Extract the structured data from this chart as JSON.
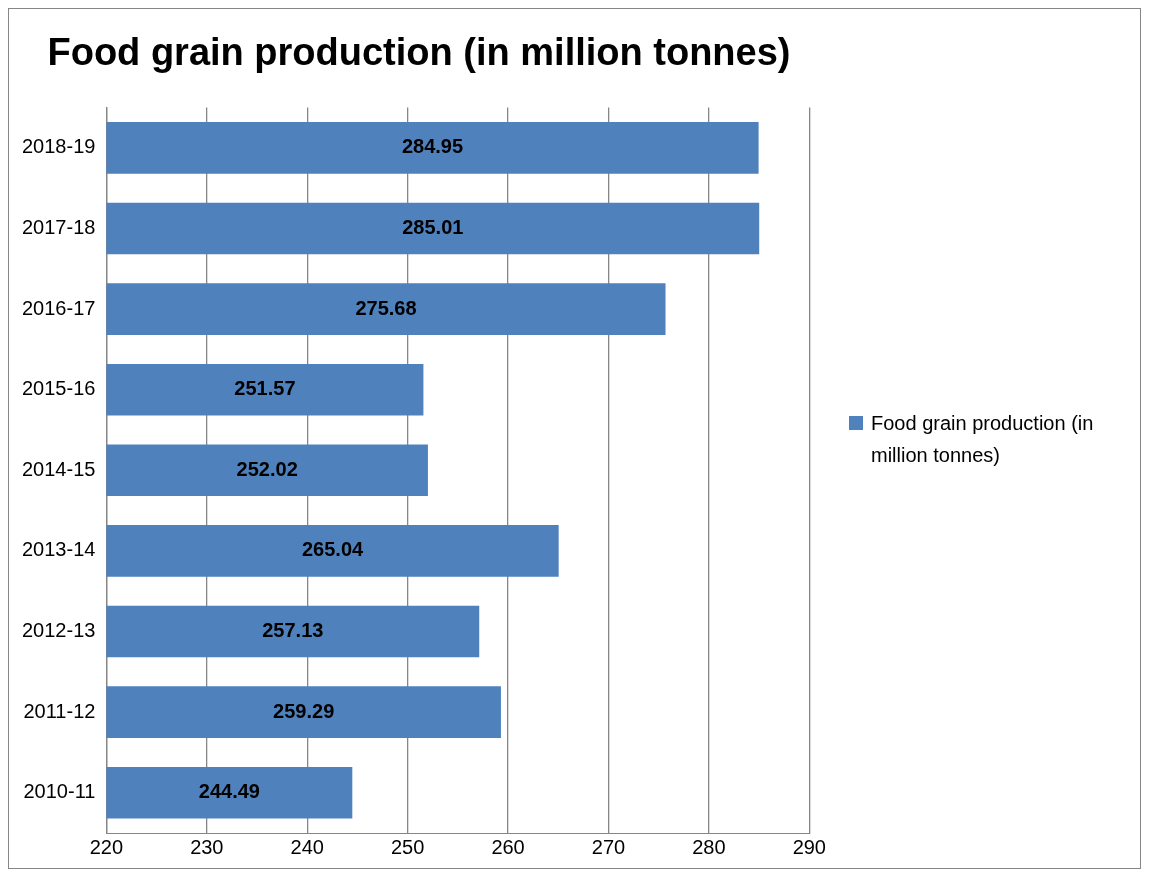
{
  "chart_data": {
    "type": "bar",
    "orientation": "horizontal",
    "title": "Food grain production (in million tonnes)",
    "categories": [
      "2018-19",
      "2017-18",
      "2016-17",
      "2015-16",
      "2014-15",
      "2013-14",
      "2012-13",
      "2011-12",
      "2010-11"
    ],
    "series": [
      {
        "name": "Food grain production (in million tonnes)",
        "color": "#4f81bd",
        "values": [
          284.95,
          285.01,
          275.68,
          251.57,
          252.02,
          265.04,
          257.13,
          259.29,
          244.49
        ]
      }
    ],
    "xlim": [
      220,
      290
    ],
    "xticks": [
      220,
      230,
      240,
      250,
      260,
      270,
      280,
      290
    ],
    "grid": "x",
    "legend": "right",
    "data_labels": true
  }
}
